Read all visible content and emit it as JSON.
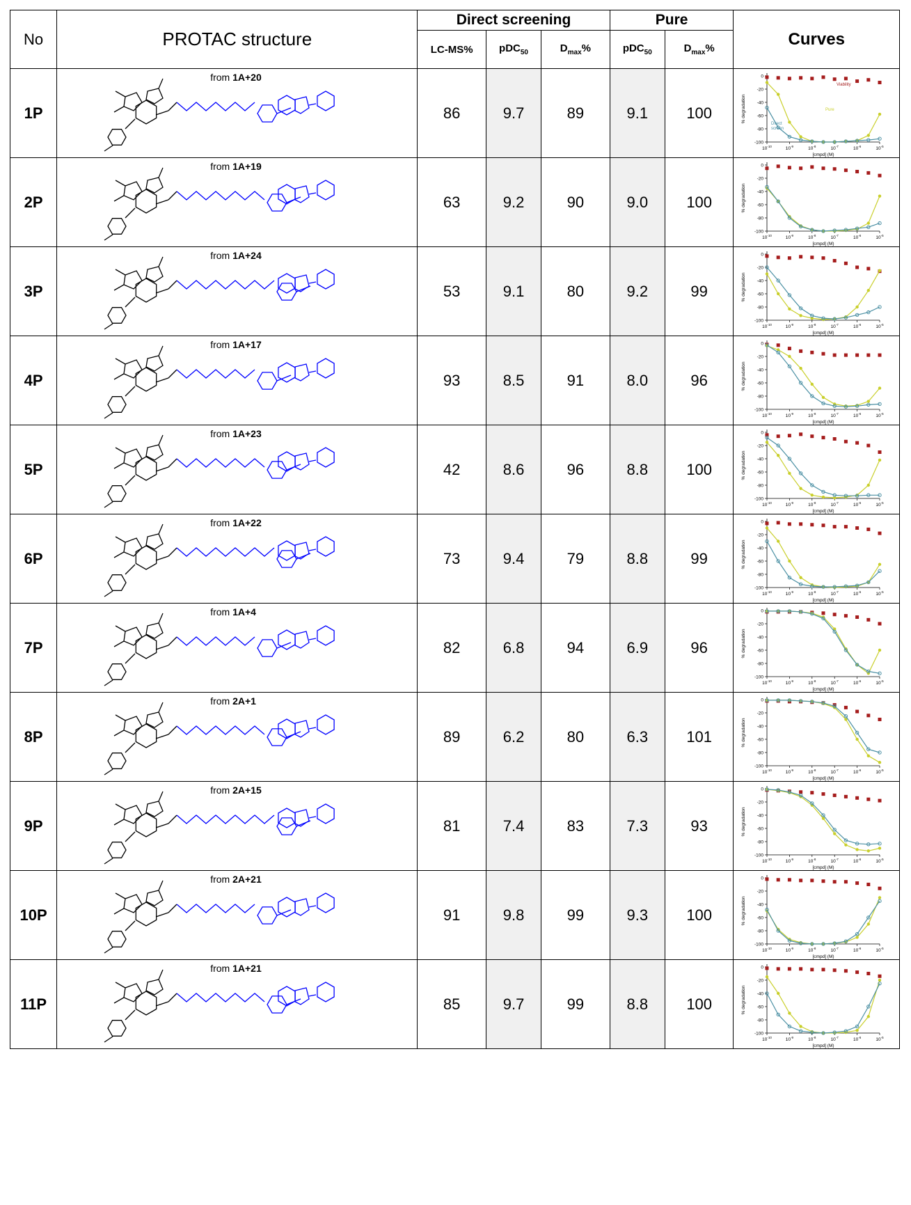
{
  "header": {
    "no": "No",
    "structure": "PROTAC structure",
    "direct_screening": "Direct screening",
    "pure": "Pure",
    "curves": "Curves",
    "lcms": "LC-MS%",
    "pdc50_base": "pDC",
    "pdc50_sub": "50",
    "dmax_base": "D",
    "dmax_sub": "max",
    "dmax_suffix": "%"
  },
  "curve_labels": {
    "ylabel": "% degradation",
    "xlabel": "[cmpd] (M)",
    "yticks": [
      "0",
      "-20",
      "-40",
      "-60",
      "-80",
      "-100"
    ],
    "xticks_base": "10",
    "xticks_exp": [
      "-10",
      "-9",
      "-8",
      "-7",
      "-6",
      "-5"
    ],
    "legend_viability": "Viability",
    "legend_pure": "Pure",
    "legend_direct_1": "Direct",
    "legend_direct_2": "screen"
  },
  "colors": {
    "viability": "#a51c1c",
    "pure": "#c9cf2b",
    "direct": "#4a8fa3",
    "linker": "#0000ff",
    "core": "#000000",
    "shade": "#f0f0f0"
  },
  "rows": [
    {
      "no": "1P",
      "from_prefix": "from ",
      "from": "1A+20",
      "lcms": "86",
      "ds_pdc50": "9.7",
      "ds_dmax": "89",
      "p_pdc50": "9.1",
      "p_dmax": "100"
    },
    {
      "no": "2P",
      "from_prefix": "from ",
      "from": "1A+19",
      "lcms": "63",
      "ds_pdc50": "9.2",
      "ds_dmax": "90",
      "p_pdc50": "9.0",
      "p_dmax": "100"
    },
    {
      "no": "3P",
      "from_prefix": "from ",
      "from": "1A+24",
      "lcms": "53",
      "ds_pdc50": "9.1",
      "ds_dmax": "80",
      "p_pdc50": "9.2",
      "p_dmax": "99"
    },
    {
      "no": "4P",
      "from_prefix": "from ",
      "from": "1A+17",
      "lcms": "93",
      "ds_pdc50": "8.5",
      "ds_dmax": "91",
      "p_pdc50": "8.0",
      "p_dmax": "96"
    },
    {
      "no": "5P",
      "from_prefix": "from ",
      "from": "1A+23",
      "lcms": "42",
      "ds_pdc50": "8.6",
      "ds_dmax": "96",
      "p_pdc50": "8.8",
      "p_dmax": "100"
    },
    {
      "no": "6P",
      "from_prefix": "from ",
      "from": "1A+22",
      "lcms": "73",
      "ds_pdc50": "9.4",
      "ds_dmax": "79",
      "p_pdc50": "8.8",
      "p_dmax": "99"
    },
    {
      "no": "7P",
      "from_prefix": "from ",
      "from": "1A+4",
      "lcms": "82",
      "ds_pdc50": "6.8",
      "ds_dmax": "94",
      "p_pdc50": "6.9",
      "p_dmax": "96"
    },
    {
      "no": "8P",
      "from_prefix": "from ",
      "from": "2A+1",
      "lcms": "89",
      "ds_pdc50": "6.2",
      "ds_dmax": "80",
      "p_pdc50": "6.3",
      "p_dmax": "101"
    },
    {
      "no": "9P",
      "from_prefix": "from ",
      "from": "2A+15",
      "lcms": "81",
      "ds_pdc50": "7.4",
      "ds_dmax": "83",
      "p_pdc50": "7.3",
      "p_dmax": "93"
    },
    {
      "no": "10P",
      "from_prefix": "from ",
      "from": "2A+21",
      "lcms": "91",
      "ds_pdc50": "9.8",
      "ds_dmax": "99",
      "p_pdc50": "9.3",
      "p_dmax": "100"
    },
    {
      "no": "11P",
      "from_prefix": "from ",
      "from": "1A+21",
      "lcms": "85",
      "ds_pdc50": "9.7",
      "ds_dmax": "99",
      "p_pdc50": "8.8",
      "p_dmax": "100"
    }
  ],
  "chart_data": [
    {
      "type": "scatter",
      "x": [
        -10,
        -9.5,
        -9,
        -8.5,
        -8,
        -7.5,
        -7,
        -6.5,
        -6,
        -5.5,
        -5
      ],
      "series": [
        {
          "name": "Viability",
          "values": [
            -2,
            -3,
            -4,
            -3,
            -4,
            -2,
            -5,
            -4,
            -8,
            -6,
            -10
          ]
        },
        {
          "name": "Pure",
          "values": [
            -10,
            -28,
            -70,
            -92,
            -99,
            -100,
            -100,
            -99,
            -98,
            -90,
            -58
          ]
        },
        {
          "name": "Direct screen",
          "values": [
            -48,
            -78,
            -92,
            -97,
            -99,
            -100,
            -100,
            -99,
            -98,
            -97,
            -95
          ]
        }
      ]
    },
    {
      "type": "scatter",
      "x": [
        -10,
        -9.5,
        -9,
        -8.5,
        -8,
        -7.5,
        -7,
        -6.5,
        -6,
        -5.5,
        -5
      ],
      "series": [
        {
          "name": "Viability",
          "values": [
            -5,
            -2,
            -4,
            -5,
            -3,
            -5,
            -6,
            -8,
            -10,
            -12,
            -16
          ]
        },
        {
          "name": "Pure",
          "values": [
            -35,
            -55,
            -78,
            -92,
            -98,
            -100,
            -100,
            -99,
            -97,
            -88,
            -47
          ]
        },
        {
          "name": "Direct screen",
          "values": [
            -33,
            -55,
            -80,
            -93,
            -98,
            -100,
            -99,
            -98,
            -96,
            -94,
            -88
          ]
        }
      ]
    },
    {
      "type": "scatter",
      "x": [
        -10,
        -9.5,
        -9,
        -8.5,
        -8,
        -7.5,
        -7,
        -6.5,
        -6,
        -5.5,
        -5
      ],
      "series": [
        {
          "name": "Viability",
          "values": [
            -3,
            -5,
            -6,
            -4,
            -5,
            -6,
            -10,
            -14,
            -20,
            -22,
            -26
          ]
        },
        {
          "name": "Pure",
          "values": [
            -30,
            -60,
            -83,
            -93,
            -97,
            -99,
            -98,
            -95,
            -80,
            -55,
            -25
          ]
        },
        {
          "name": "Direct screen",
          "values": [
            -20,
            -40,
            -62,
            -82,
            -93,
            -97,
            -98,
            -96,
            -92,
            -88,
            -80
          ]
        }
      ]
    },
    {
      "type": "scatter",
      "x": [
        -10,
        -9.5,
        -9,
        -8.5,
        -8,
        -7.5,
        -7,
        -6.5,
        -6,
        -5.5,
        -5
      ],
      "series": [
        {
          "name": "Viability",
          "values": [
            -2,
            -3,
            -8,
            -12,
            -14,
            -16,
            -18,
            -18,
            -18,
            -18,
            -18
          ]
        },
        {
          "name": "Pure",
          "values": [
            -4,
            -10,
            -20,
            -38,
            -62,
            -82,
            -92,
            -95,
            -94,
            -88,
            -68
          ]
        },
        {
          "name": "Direct screen",
          "values": [
            -3,
            -14,
            -35,
            -60,
            -80,
            -91,
            -95,
            -96,
            -95,
            -93,
            -92
          ]
        }
      ]
    },
    {
      "type": "scatter",
      "x": [
        -10,
        -9.5,
        -9,
        -8.5,
        -8,
        -7.5,
        -7,
        -6.5,
        -6,
        -5.5,
        -5
      ],
      "series": [
        {
          "name": "Viability",
          "values": [
            -4,
            -6,
            -5,
            -3,
            -6,
            -8,
            -10,
            -14,
            -16,
            -20,
            -30
          ]
        },
        {
          "name": "Pure",
          "values": [
            -15,
            -35,
            -62,
            -85,
            -95,
            -98,
            -99,
            -98,
            -95,
            -80,
            -42
          ]
        },
        {
          "name": "Direct screen",
          "values": [
            -8,
            -20,
            -40,
            -62,
            -80,
            -90,
            -95,
            -96,
            -96,
            -95,
            -95
          ]
        }
      ]
    },
    {
      "type": "scatter",
      "x": [
        -10,
        -9.5,
        -9,
        -8.5,
        -8,
        -7.5,
        -7,
        -6.5,
        -6,
        -5.5,
        -5
      ],
      "series": [
        {
          "name": "Viability",
          "values": [
            -3,
            -2,
            -4,
            -4,
            -5,
            -6,
            -8,
            -8,
            -10,
            -12,
            -18
          ]
        },
        {
          "name": "Pure",
          "values": [
            -10,
            -30,
            -60,
            -85,
            -96,
            -99,
            -100,
            -99,
            -98,
            -92,
            -65
          ]
        },
        {
          "name": "Direct screen",
          "values": [
            -30,
            -60,
            -85,
            -95,
            -98,
            -99,
            -99,
            -98,
            -97,
            -92,
            -75
          ]
        }
      ]
    },
    {
      "type": "scatter",
      "x": [
        -10,
        -9.5,
        -9,
        -8.5,
        -8,
        -7.5,
        -7,
        -6.5,
        -6,
        -5.5,
        -5
      ],
      "series": [
        {
          "name": "Viability",
          "values": [
            -2,
            -2,
            -2,
            -2,
            -3,
            -4,
            -6,
            -8,
            -10,
            -14,
            -20
          ]
        },
        {
          "name": "Pure",
          "values": [
            -1,
            -1,
            -1,
            -2,
            -4,
            -10,
            -28,
            -58,
            -82,
            -95,
            -60
          ]
        },
        {
          "name": "Direct screen",
          "values": [
            -1,
            -1,
            -1,
            -2,
            -5,
            -12,
            -32,
            -60,
            -82,
            -92,
            -95
          ]
        }
      ]
    },
    {
      "type": "scatter",
      "x": [
        -10,
        -9.5,
        -9,
        -8.5,
        -8,
        -7.5,
        -7,
        -6.5,
        -6,
        -5.5,
        -5
      ],
      "series": [
        {
          "name": "Viability",
          "values": [
            -2,
            -2,
            -3,
            -3,
            -4,
            -5,
            -8,
            -12,
            -18,
            -24,
            -30
          ]
        },
        {
          "name": "Pure",
          "values": [
            -1,
            -1,
            -1,
            -2,
            -3,
            -6,
            -12,
            -30,
            -60,
            -85,
            -95
          ]
        },
        {
          "name": "Direct screen",
          "values": [
            -1,
            -1,
            -1,
            -2,
            -3,
            -5,
            -10,
            -25,
            -50,
            -75,
            -80
          ]
        }
      ]
    },
    {
      "type": "scatter",
      "x": [
        -10,
        -9.5,
        -9,
        -8.5,
        -8,
        -7.5,
        -7,
        -6.5,
        -6,
        -5.5,
        -5
      ],
      "series": [
        {
          "name": "Viability",
          "values": [
            -2,
            -3,
            -4,
            -5,
            -6,
            -8,
            -10,
            -12,
            -14,
            -16,
            -18
          ]
        },
        {
          "name": "Pure",
          "values": [
            -1,
            -3,
            -6,
            -12,
            -25,
            -45,
            -68,
            -85,
            -92,
            -94,
            -90
          ]
        },
        {
          "name": "Direct screen",
          "values": [
            -1,
            -2,
            -5,
            -10,
            -22,
            -40,
            -62,
            -78,
            -83,
            -84,
            -83
          ]
        }
      ]
    },
    {
      "type": "scatter",
      "x": [
        -10,
        -9.5,
        -9,
        -8.5,
        -8,
        -7.5,
        -7,
        -6.5,
        -6,
        -5.5,
        -5
      ],
      "series": [
        {
          "name": "Viability",
          "values": [
            -2,
            -3,
            -3,
            -4,
            -4,
            -5,
            -6,
            -6,
            -8,
            -10,
            -16
          ]
        },
        {
          "name": "Pure",
          "values": [
            -50,
            -78,
            -93,
            -98,
            -100,
            -100,
            -99,
            -97,
            -90,
            -70,
            -30
          ]
        },
        {
          "name": "Direct screen",
          "values": [
            -48,
            -80,
            -95,
            -99,
            -100,
            -100,
            -99,
            -96,
            -85,
            -60,
            -35
          ]
        }
      ]
    },
    {
      "type": "scatter",
      "x": [
        -10,
        -9.5,
        -9,
        -8.5,
        -8,
        -7.5,
        -7,
        -6.5,
        -6,
        -5.5,
        -5
      ],
      "series": [
        {
          "name": "Viability",
          "values": [
            -2,
            -3,
            -3,
            -3,
            -4,
            -4,
            -5,
            -6,
            -8,
            -10,
            -14
          ]
        },
        {
          "name": "Pure",
          "values": [
            -15,
            -40,
            -70,
            -90,
            -98,
            -100,
            -100,
            -99,
            -96,
            -75,
            -20
          ]
        },
        {
          "name": "Direct screen",
          "values": [
            -40,
            -72,
            -90,
            -97,
            -99,
            -100,
            -99,
            -97,
            -90,
            -60,
            -25
          ]
        }
      ]
    }
  ]
}
